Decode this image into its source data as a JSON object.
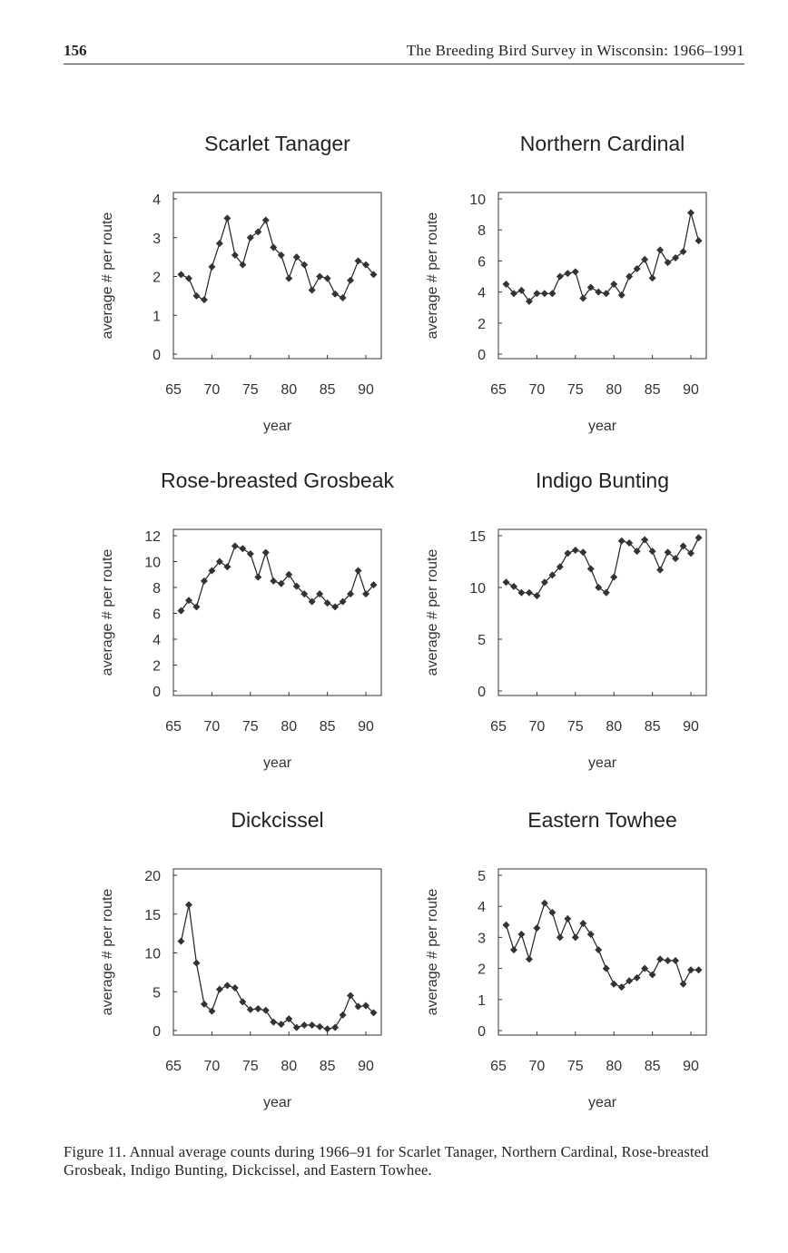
{
  "header": {
    "page_number": "156",
    "running_title": "The Breeding Bird Survey in Wisconsin: 1966–1991"
  },
  "caption": "Figure 11. Annual average counts during 1966–91 for Scarlet Tanager, Northern Cardinal, Rose-breasted Grosbeak, Indigo Bunting, Dickcissel, and Eastern Towhee.",
  "chart_data": [
    {
      "type": "line",
      "title": "Scarlet Tanager",
      "xlabel": "year",
      "ylabel": "average # per route",
      "xlim": [
        65,
        92
      ],
      "ylim": [
        0,
        4
      ],
      "xticks": [
        65,
        70,
        75,
        80,
        85,
        90
      ],
      "yticks": [
        0,
        1,
        2,
        3,
        4
      ],
      "x": [
        66,
        67,
        68,
        69,
        70,
        71,
        72,
        73,
        74,
        75,
        76,
        77,
        78,
        79,
        80,
        81,
        82,
        83,
        84,
        85,
        86,
        87,
        88,
        89,
        90,
        91
      ],
      "values": [
        2.05,
        1.95,
        1.5,
        1.4,
        2.25,
        2.85,
        3.5,
        2.55,
        2.3,
        3.0,
        3.15,
        3.45,
        2.75,
        2.55,
        1.95,
        2.5,
        2.3,
        1.65,
        2.0,
        1.95,
        1.55,
        1.45,
        1.9,
        2.4,
        2.3,
        2.05
      ]
    },
    {
      "type": "line",
      "title": "Northern Cardinal",
      "xlabel": "year",
      "ylabel": "average # per route",
      "xlim": [
        65,
        92
      ],
      "ylim": [
        0,
        10
      ],
      "xticks": [
        65,
        70,
        75,
        80,
        85,
        90
      ],
      "yticks": [
        0,
        2,
        4,
        6,
        8,
        10
      ],
      "x": [
        66,
        67,
        68,
        69,
        70,
        71,
        72,
        73,
        74,
        75,
        76,
        77,
        78,
        79,
        80,
        81,
        82,
        83,
        84,
        85,
        86,
        87,
        88,
        89,
        90,
        91
      ],
      "values": [
        4.5,
        3.9,
        4.1,
        3.4,
        3.9,
        3.9,
        3.9,
        5.0,
        5.2,
        5.3,
        3.6,
        4.3,
        4.0,
        3.9,
        4.5,
        3.8,
        5.0,
        5.5,
        6.1,
        4.9,
        6.7,
        5.9,
        6.2,
        6.6,
        9.1,
        7.3
      ]
    },
    {
      "type": "line",
      "title": "Rose-breasted Grosbeak",
      "xlabel": "year",
      "ylabel": "average # per route",
      "xlim": [
        65,
        92
      ],
      "ylim": [
        0,
        12
      ],
      "xticks": [
        65,
        70,
        75,
        80,
        85,
        90
      ],
      "yticks": [
        0,
        2,
        4,
        6,
        8,
        10,
        12
      ],
      "x": [
        66,
        67,
        68,
        69,
        70,
        71,
        72,
        73,
        74,
        75,
        76,
        77,
        78,
        79,
        80,
        81,
        82,
        83,
        84,
        85,
        86,
        87,
        88,
        89,
        90,
        91
      ],
      "values": [
        6.2,
        7.0,
        6.5,
        8.5,
        9.3,
        10.0,
        9.6,
        11.2,
        11.0,
        10.6,
        8.8,
        10.7,
        8.5,
        8.3,
        9.0,
        8.1,
        7.5,
        6.9,
        7.5,
        6.8,
        6.5,
        6.9,
        7.5,
        9.3,
        7.5,
        8.2
      ]
    },
    {
      "type": "line",
      "title": "Indigo Bunting",
      "xlabel": "year",
      "ylabel": "average # per route",
      "xlim": [
        65,
        92
      ],
      "ylim": [
        0,
        15
      ],
      "xticks": [
        65,
        70,
        75,
        80,
        85,
        90
      ],
      "yticks": [
        0,
        5,
        10,
        15
      ],
      "x": [
        66,
        67,
        68,
        69,
        70,
        71,
        72,
        73,
        74,
        75,
        76,
        77,
        78,
        79,
        80,
        81,
        82,
        83,
        84,
        85,
        86,
        87,
        88,
        89,
        90,
        91
      ],
      "values": [
        10.5,
        10.1,
        9.5,
        9.5,
        9.2,
        10.5,
        11.2,
        12.0,
        13.3,
        13.6,
        13.4,
        11.8,
        10.0,
        9.5,
        11.0,
        14.5,
        14.3,
        13.5,
        14.6,
        13.5,
        11.7,
        13.4,
        12.8,
        14.0,
        13.3,
        14.8
      ]
    },
    {
      "type": "line",
      "title": "Dickcissel",
      "xlabel": "year",
      "ylabel": "average # per route",
      "xlim": [
        65,
        92
      ],
      "ylim": [
        0,
        20
      ],
      "xticks": [
        65,
        70,
        75,
        80,
        85,
        90
      ],
      "yticks": [
        0,
        5,
        10,
        15,
        20
      ],
      "x": [
        66,
        67,
        68,
        69,
        70,
        71,
        72,
        73,
        74,
        75,
        76,
        77,
        78,
        79,
        80,
        81,
        82,
        83,
        84,
        85,
        86,
        87,
        88,
        89,
        90,
        91
      ],
      "values": [
        11.5,
        16.2,
        8.7,
        3.4,
        2.5,
        5.3,
        5.8,
        5.5,
        3.7,
        2.7,
        2.8,
        2.6,
        1.1,
        0.8,
        1.5,
        0.4,
        0.7,
        0.7,
        0.5,
        0.2,
        0.4,
        2.0,
        4.5,
        3.1,
        3.2,
        2.3
      ]
    },
    {
      "type": "line",
      "title": "Eastern Towhee",
      "xlabel": "year",
      "ylabel": "average # per route",
      "xlim": [
        65,
        92
      ],
      "ylim": [
        0,
        5
      ],
      "xticks": [
        65,
        70,
        75,
        80,
        85,
        90
      ],
      "yticks": [
        0,
        1,
        2,
        3,
        4,
        5
      ],
      "x": [
        66,
        67,
        68,
        69,
        70,
        71,
        72,
        73,
        74,
        75,
        76,
        77,
        78,
        79,
        80,
        81,
        82,
        83,
        84,
        85,
        86,
        87,
        88,
        89,
        90,
        91
      ],
      "values": [
        3.4,
        2.6,
        3.1,
        2.3,
        3.3,
        4.1,
        3.8,
        3.0,
        3.6,
        3.0,
        3.45,
        3.1,
        2.6,
        2.0,
        1.5,
        1.4,
        1.6,
        1.7,
        2.0,
        1.8,
        2.3,
        2.25,
        2.25,
        1.5,
        1.95,
        1.95
      ]
    }
  ]
}
